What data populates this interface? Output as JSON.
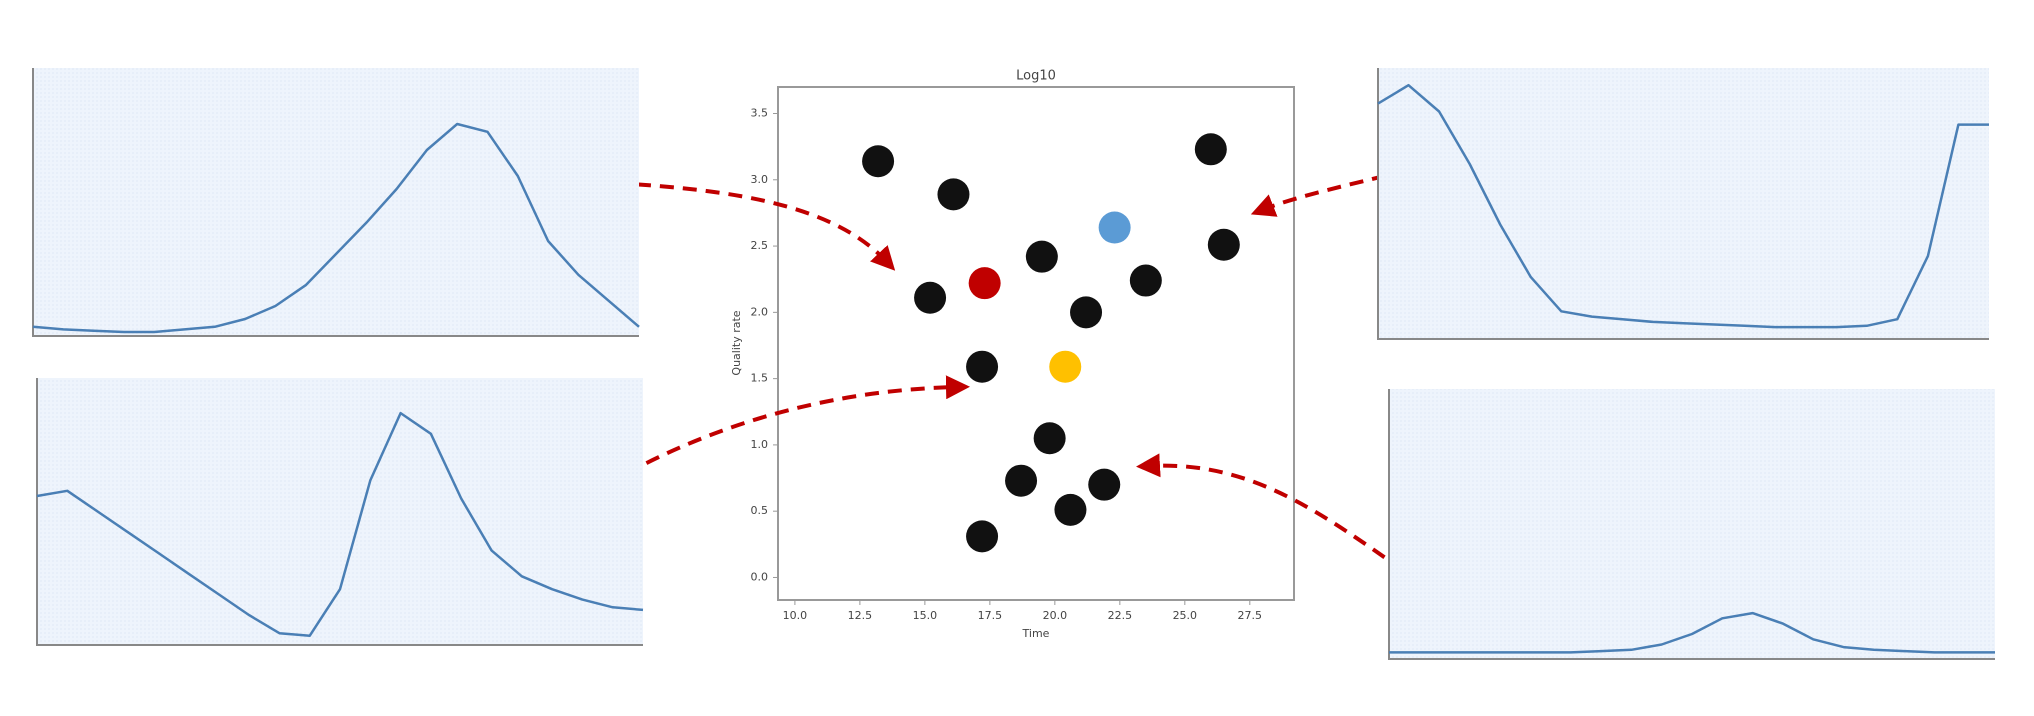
{
  "chart_data": [
    {
      "type": "scatter",
      "title": "Log10",
      "x_label": "Time",
      "y_label": "Quality rate",
      "x": [
        13.2,
        16.1,
        26.0,
        22.3,
        26.5,
        19.5,
        17.3,
        15.2,
        23.5,
        21.2,
        17.2,
        20.4,
        19.8,
        18.7,
        21.9,
        20.6,
        17.2
      ],
      "values": [
        3.14,
        2.89,
        3.23,
        2.64,
        2.51,
        2.42,
        2.22,
        2.11,
        2.24,
        2.0,
        1.59,
        1.59,
        1.05,
        0.73,
        0.7,
        0.51,
        0.31
      ],
      "colors": [
        "#111111",
        "#111111",
        "#111111",
        "#5b9bd5",
        "#111111",
        "#111111",
        "#c00000",
        "#111111",
        "#111111",
        "#111111",
        "#111111",
        "#ffc000",
        "#111111",
        "#111111",
        "#111111",
        "#111111",
        "#111111"
      ],
      "xlim": [
        9.35,
        29.2
      ],
      "ylim": [
        -0.17,
        3.7
      ],
      "xticks": [
        {
          "value": 10,
          "label": "10.0"
        },
        12.5,
        {
          "value": 15,
          "label": "15.0"
        },
        17.5,
        {
          "value": 20,
          "label": "20.0"
        },
        22.5,
        {
          "value": 25,
          "label": "25.0"
        },
        27.5
      ],
      "yticks": [
        {
          "value": 0,
          "label": "0.0"
        },
        0.5,
        {
          "value": 1,
          "label": "1.0"
        },
        1.5,
        {
          "value": 2,
          "label": "2.0"
        },
        2.5,
        {
          "value": 3,
          "label": "3.0"
        },
        3.5
      ]
    },
    {
      "type": "line",
      "color": "#4a7fb5",
      "xlim": [
        0,
        20
      ],
      "ylim": [
        0,
        1
      ],
      "x": [
        0,
        1,
        2,
        3,
        4,
        5,
        6,
        7,
        8,
        9,
        10,
        11,
        12,
        13,
        14,
        15,
        16,
        17,
        18,
        19,
        20
      ],
      "values": [
        0.02,
        0.01,
        0.005,
        0.0,
        0.0,
        0.01,
        0.02,
        0.05,
        0.1,
        0.18,
        0.3,
        0.42,
        0.55,
        0.7,
        0.8,
        0.77,
        0.6,
        0.35,
        0.22,
        0.12,
        0.02
      ]
    },
    {
      "type": "line",
      "color": "#4a7fb5",
      "xlim": [
        0,
        20
      ],
      "ylim": [
        0,
        1
      ],
      "x": [
        0,
        1,
        2,
        3,
        4,
        5,
        6,
        7,
        8,
        9,
        10,
        11,
        12,
        13,
        14,
        15,
        16,
        17,
        18,
        19,
        20
      ],
      "values": [
        0.56,
        0.58,
        0.5,
        0.42,
        0.34,
        0.26,
        0.18,
        0.1,
        0.03,
        0.02,
        0.2,
        0.62,
        0.88,
        0.8,
        0.55,
        0.35,
        0.25,
        0.2,
        0.16,
        0.13,
        0.12
      ]
    },
    {
      "type": "line",
      "color": "#4a7fb5",
      "xlim": [
        0,
        20
      ],
      "ylim": [
        0,
        1
      ],
      "x": [
        0,
        1,
        2,
        3,
        4,
        5,
        6,
        7,
        8,
        9,
        10,
        11,
        12,
        13,
        14,
        15,
        16,
        17,
        18,
        19,
        20
      ],
      "values": [
        0.88,
        0.95,
        0.85,
        0.65,
        0.42,
        0.22,
        0.09,
        0.07,
        0.06,
        0.05,
        0.045,
        0.04,
        0.035,
        0.03,
        0.03,
        0.03,
        0.035,
        0.06,
        0.3,
        0.8,
        0.8
      ]
    },
    {
      "type": "line",
      "color": "#4a7fb5",
      "xlim": [
        0,
        20
      ],
      "ylim": [
        0,
        1
      ],
      "x": [
        0,
        1,
        2,
        3,
        4,
        5,
        6,
        7,
        8,
        9,
        10,
        11,
        12,
        13,
        14,
        15,
        16,
        17,
        18,
        19,
        20
      ],
      "values": [
        0.01,
        0.01,
        0.01,
        0.01,
        0.01,
        0.01,
        0.01,
        0.015,
        0.02,
        0.04,
        0.08,
        0.14,
        0.16,
        0.12,
        0.06,
        0.03,
        0.02,
        0.015,
        0.01,
        0.01,
        0.01
      ]
    }
  ]
}
